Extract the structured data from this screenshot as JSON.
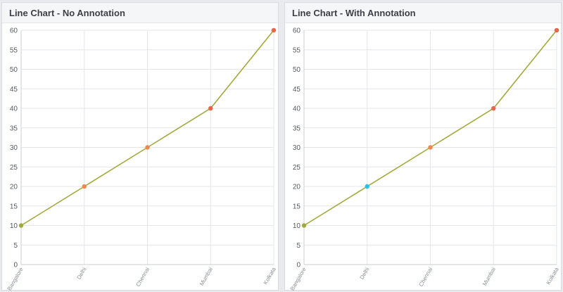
{
  "charts": [
    {
      "title": "Line Chart - No Annotation",
      "chart_data": {
        "type": "line",
        "categories": [
          "Bangalore",
          "Delhi",
          "Chennai",
          "Mumbai",
          "Kolkata"
        ],
        "series": [
          {
            "values": [
              10,
              20,
              30,
              40,
              60
            ]
          }
        ],
        "ylim": [
          0,
          60
        ],
        "yticks": [
          0,
          5,
          10,
          15,
          20,
          25,
          30,
          35,
          40,
          45,
          50,
          55,
          60
        ],
        "grid": true,
        "line_color": "#a3a83c",
        "point_colors": [
          "#a3a83c",
          "#f0884a",
          "#f0884a",
          "#e8644a",
          "#e8644a"
        ]
      }
    },
    {
      "title": "Line Chart - With Annotation",
      "chart_data": {
        "type": "line",
        "categories": [
          "Bangalore",
          "Delhi",
          "Chennai",
          "Mumbai",
          "Kolkata"
        ],
        "series": [
          {
            "values": [
              10,
              20,
              30,
              40,
              60
            ]
          }
        ],
        "ylim": [
          0,
          60
        ],
        "yticks": [
          0,
          5,
          10,
          15,
          20,
          25,
          30,
          35,
          40,
          45,
          50,
          55,
          60
        ],
        "grid": true,
        "line_color": "#a3a83c",
        "point_colors": [
          "#a3a83c",
          "#22c3ee",
          "#f0884a",
          "#e8644a",
          "#e8644a"
        ],
        "annotated_category": "Delhi"
      }
    }
  ]
}
